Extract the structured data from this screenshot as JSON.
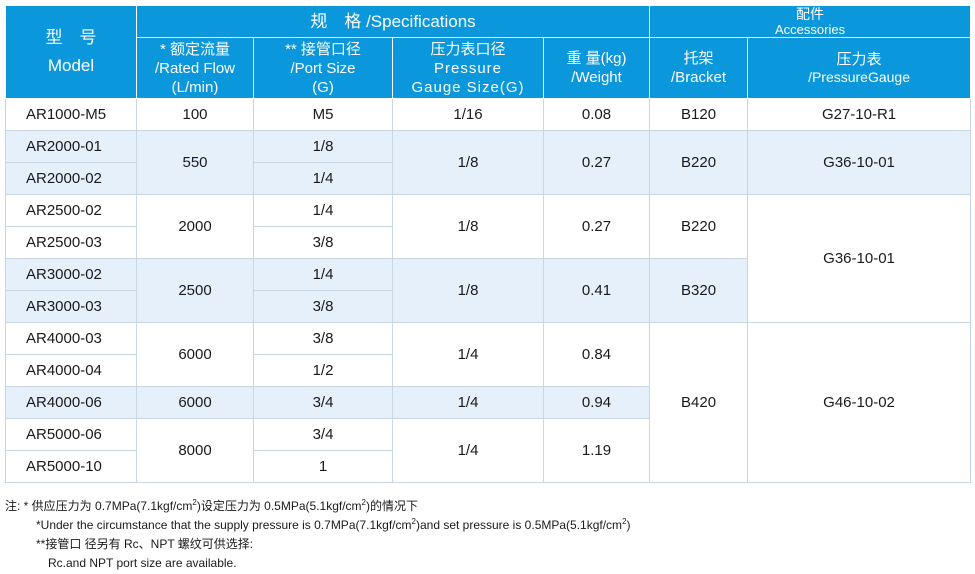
{
  "header": {
    "model_cn": "型　号",
    "model_en": "Model",
    "specs_title": "规　格 /Specifications",
    "accessories_cn": "配件",
    "accessories_en": "Accessories",
    "flow_cn": "* 额定流量",
    "flow_en": "/Rated Flow",
    "flow_unit": "(L/min)",
    "port_cn": "** 接管口径",
    "port_en": "/Port Size",
    "port_unit": "(G)",
    "gauge_cn": "压力表口径",
    "gauge_en1": "Pressure",
    "gauge_en2": "Gauge Size(G)",
    "weight_cn": "重  量(kg)",
    "weight_en": "/Weight",
    "bracket_cn": "托架",
    "bracket_en": "/Bracket",
    "pgauge_cn": "压力表",
    "pgauge_en": "/PressureGauge"
  },
  "rows": [
    {
      "model": "AR1000-M5",
      "port": "M5"
    },
    {
      "model": "AR2000-01",
      "port": "1/8"
    },
    {
      "model": "AR2000-02",
      "port": "1/4"
    },
    {
      "model": "AR2500-02",
      "port": "1/4"
    },
    {
      "model": "AR2500-03",
      "port": "3/8"
    },
    {
      "model": "AR3000-02",
      "port": "1/4"
    },
    {
      "model": "AR3000-03",
      "port": "3/8"
    },
    {
      "model": "AR4000-03",
      "port": "3/8"
    },
    {
      "model": "AR4000-04",
      "port": "1/2"
    },
    {
      "model": "AR4000-06",
      "port": "3/4"
    },
    {
      "model": "AR5000-06",
      "port": "3/4"
    },
    {
      "model": "AR5000-10",
      "port": "1"
    }
  ],
  "groups": {
    "flow": [
      "100",
      "550",
      "2000",
      "2500",
      "6000",
      "6000",
      "8000"
    ],
    "gauge_size": [
      "1/16",
      "1/8",
      "1/8",
      "1/8",
      "1/4",
      "1/4",
      "1/4"
    ],
    "weight": [
      "0.08",
      "0.27",
      "0.27",
      "0.41",
      "0.84",
      "0.94",
      "1.19"
    ],
    "bracket": [
      "B120",
      "B220",
      "B220",
      "B320",
      "B420"
    ],
    "pressure_gauge": [
      "G27-10-R1",
      "G36-10-01",
      "G36-10-01",
      "G46-10-02"
    ]
  },
  "notes": {
    "label": "注:",
    "n1_cn_a": " * 供应压力为 0.7MPa(7.1kgf/cm",
    "n1_cn_b": ")设定压力为 0.5MPa(5.1kgf/cm",
    "n1_cn_c": ")的情况下",
    "n1_en_a": "*Under the circumstance that the supply pressure is 0.7MPa(7.1kgf/cm",
    "n1_en_b": ")and set pressure is 0.5MPa(5.1kgf/cm",
    "n1_en_c": ")",
    "sup": "2",
    "n2_cn": "**接管口 径另有 Rc、NPT 螺纹可供选择:",
    "n2_en": "Rc.and NPT port size are available."
  }
}
